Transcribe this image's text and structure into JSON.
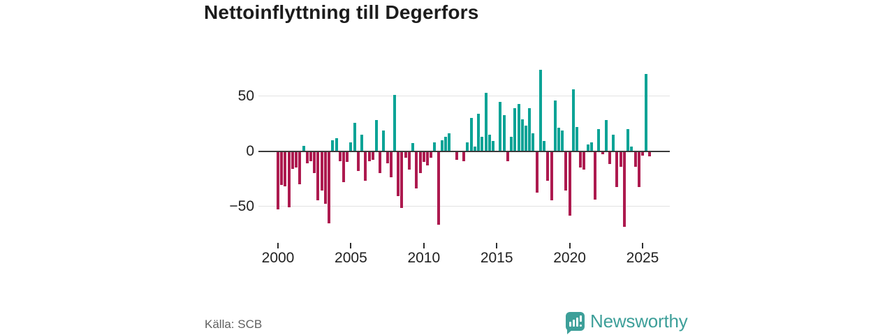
{
  "title": "Nettoinflyttning till Degerfors",
  "source": "Källa: SCB",
  "brand": {
    "name": "Newsworthy"
  },
  "colors": {
    "positive": "#0aa396",
    "negative": "#ad1a4f",
    "zero_axis": "#3b3b3b",
    "gridline": "#e2e2e2",
    "brand_teal": "#3d9f99"
  },
  "chart_data": {
    "type": "bar",
    "title": "Nettoinflyttning till Degerfors",
    "xlabel": "",
    "ylabel": "",
    "ylim": [
      -80,
      77
    ],
    "grid": "horizontal",
    "yticks": [
      50,
      0,
      -50
    ],
    "yticklabels": [
      "50",
      "0",
      "−50"
    ],
    "xtick_years": [
      2000,
      2005,
      2010,
      2015,
      2020,
      2025
    ],
    "xticklabels": [
      "2000",
      "2005",
      "2010",
      "2015",
      "2020",
      "2025"
    ],
    "frequency": "quarterly",
    "quarters": [
      "2000Q1",
      "2000Q2",
      "2000Q3",
      "2000Q4",
      "2001Q1",
      "2001Q2",
      "2001Q3",
      "2001Q4",
      "2002Q1",
      "2002Q2",
      "2002Q3",
      "2002Q4",
      "2003Q1",
      "2003Q2",
      "2003Q3",
      "2003Q4",
      "2004Q1",
      "2004Q2",
      "2004Q3",
      "2004Q4",
      "2005Q1",
      "2005Q2",
      "2005Q3",
      "2005Q4",
      "2006Q1",
      "2006Q2",
      "2006Q3",
      "2006Q4",
      "2007Q1",
      "2007Q2",
      "2007Q3",
      "2007Q4",
      "2008Q1",
      "2008Q2",
      "2008Q3",
      "2008Q4",
      "2009Q1",
      "2009Q2",
      "2009Q3",
      "2009Q4",
      "2010Q1",
      "2010Q2",
      "2010Q3",
      "2010Q4",
      "2011Q1",
      "2011Q2",
      "2011Q3",
      "2011Q4",
      "2012Q1",
      "2012Q2",
      "2012Q3",
      "2012Q4",
      "2013Q1",
      "2013Q2",
      "2013Q3",
      "2013Q4",
      "2014Q1",
      "2014Q2",
      "2014Q3",
      "2014Q4",
      "2015Q1",
      "2015Q2",
      "2015Q3",
      "2015Q4",
      "2016Q1",
      "2016Q2",
      "2016Q3",
      "2016Q4",
      "2017Q1",
      "2017Q2",
      "2017Q3",
      "2017Q4",
      "2018Q1",
      "2018Q2",
      "2018Q3",
      "2018Q4",
      "2019Q1",
      "2019Q2",
      "2019Q3",
      "2019Q4",
      "2020Q1",
      "2020Q2",
      "2020Q3",
      "2020Q4",
      "2021Q1",
      "2021Q2",
      "2021Q3",
      "2021Q4",
      "2022Q1",
      "2022Q2",
      "2022Q3",
      "2022Q4",
      "2023Q1",
      "2023Q2",
      "2023Q3",
      "2023Q4",
      "2024Q1",
      "2024Q2",
      "2024Q3",
      "2024Q4",
      "2025Q1",
      "2025Q2",
      "2025Q3"
    ],
    "values": [
      -53,
      -31,
      -32,
      -51,
      -16,
      -15,
      -30,
      5,
      -11,
      -9,
      -20,
      -45,
      -36,
      -48,
      -66,
      10,
      12,
      -9,
      -28,
      -10,
      8,
      26,
      -18,
      15,
      -27,
      -9,
      -8,
      28,
      -20,
      19,
      -11,
      -24,
      51,
      -41,
      -52,
      -6,
      -17,
      7,
      -34,
      -20,
      -10,
      -13,
      -6,
      8,
      -67,
      10,
      13,
      16,
      0,
      -8,
      -1,
      -9,
      8,
      30,
      4,
      34,
      13,
      53,
      15,
      9,
      0,
      45,
      33,
      -9,
      13,
      39,
      43,
      29,
      23,
      39,
      16,
      -38,
      74,
      9,
      -27,
      -45,
      46,
      21,
      19,
      -36,
      -59,
      56,
      22,
      -15,
      -17,
      6,
      8,
      -44,
      20,
      -3,
      28,
      -12,
      15,
      -33,
      -14,
      -69,
      20,
      4,
      -14,
      -33,
      -4,
      70,
      -5
    ]
  }
}
